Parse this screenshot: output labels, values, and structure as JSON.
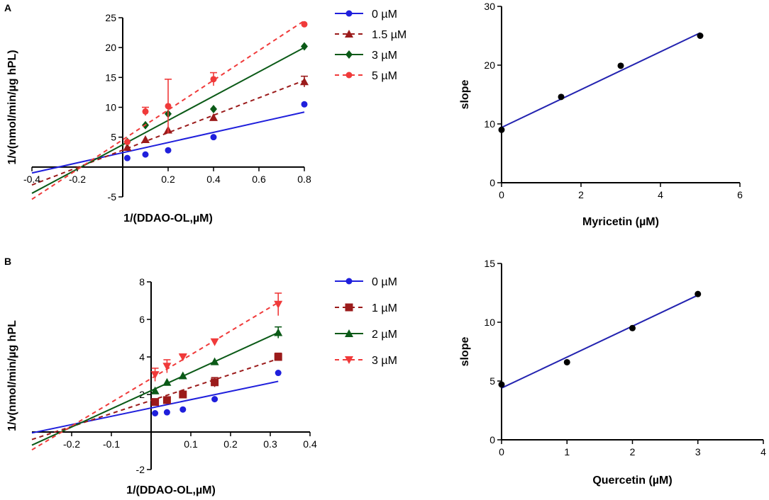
{
  "panels": [
    {
      "label": "A"
    },
    {
      "label": "B"
    }
  ],
  "chart_data": [
    {
      "id": "A-left",
      "type": "scatter",
      "title": "",
      "xlabel": "1/(DDAO-OL,µM)",
      "ylabel": "1/v(nmol/min/µg hPL)",
      "xlim": [
        -0.4,
        0.8
      ],
      "ylim": [
        -5,
        25
      ],
      "xticks": [
        -0.4,
        -0.2,
        0.2,
        0.4,
        0.6,
        0.8
      ],
      "xtick_labels": [
        "-0.4",
        "-0.2",
        "0.2",
        "0.4",
        "0.6",
        "0.8"
      ],
      "yticks": [
        -5,
        5,
        10,
        15,
        20,
        25
      ],
      "ytick_labels": [
        "-5",
        "5",
        "10",
        "15",
        "20",
        "25"
      ],
      "legend_position": "right",
      "series": [
        {
          "name": "0 µM",
          "color": "#1f1fdc",
          "marker": "circle",
          "dash": "solid",
          "x": [
            0.02,
            0.1,
            0.2,
            0.4,
            0.8
          ],
          "y": [
            1.5,
            2.1,
            2.8,
            5.0,
            10.5
          ],
          "err": [
            0,
            0,
            0,
            0,
            0
          ],
          "fit_x": [
            -0.4,
            0.8
          ],
          "fit_y": [
            -1.0,
            9.2
          ]
        },
        {
          "name": "1.5 µM",
          "color": "#9b1b1b",
          "marker": "triangle",
          "dash": "dashed",
          "x": [
            0.02,
            0.1,
            0.2,
            0.4,
            0.8
          ],
          "y": [
            3.3,
            4.6,
            6.2,
            8.3,
            14.3
          ],
          "err": [
            0,
            0,
            0,
            0,
            0.9
          ],
          "fit_x": [
            -0.4,
            0.8
          ],
          "fit_y": [
            -3.0,
            14.5
          ]
        },
        {
          "name": "3 µM",
          "color": "#0b5a17",
          "marker": "diamond",
          "dash": "solid",
          "x": [
            0.02,
            0.1,
            0.2,
            0.4,
            0.8
          ],
          "y": [
            4.2,
            7.0,
            8.9,
            9.7,
            20.2
          ],
          "err": [
            0,
            0,
            0,
            0,
            0
          ],
          "fit_x": [
            -0.4,
            0.8
          ],
          "fit_y": [
            -4.4,
            20.0
          ]
        },
        {
          "name": "5 µM",
          "color": "#f03a3a",
          "marker": "circle",
          "dash": "dashed",
          "x": [
            0.02,
            0.1,
            0.2,
            0.4,
            0.8
          ],
          "y": [
            4.2,
            9.3,
            10.2,
            14.7,
            23.9
          ],
          "err": [
            0,
            0.7,
            4.5,
            1.1,
            0
          ],
          "fit_x": [
            -0.4,
            0.8
          ],
          "fit_y": [
            -5.4,
            24.5
          ]
        }
      ]
    },
    {
      "id": "A-right",
      "type": "scatter",
      "title": "",
      "xlabel": "Myricetin (µM)",
      "ylabel": "slope",
      "xlim": [
        0,
        6
      ],
      "ylim": [
        0,
        30
      ],
      "xticks": [
        0,
        2,
        4,
        6
      ],
      "xtick_labels": [
        "0",
        "2",
        "4",
        "6"
      ],
      "yticks": [
        0,
        10,
        20,
        30
      ],
      "ytick_labels": [
        "0",
        "10",
        "20",
        "30"
      ],
      "series": [
        {
          "name": "slope",
          "color": "#000000",
          "marker": "circle",
          "x": [
            0,
            1.5,
            3,
            5
          ],
          "y": [
            9.0,
            14.6,
            19.9,
            25.0
          ],
          "fit_x": [
            0,
            5
          ],
          "fit_y": [
            9.4,
            25.5
          ],
          "fit_color": "#2323b0"
        }
      ]
    },
    {
      "id": "B-left",
      "type": "scatter",
      "title": "",
      "xlabel": "1/(DDAO-OL,µM)",
      "ylabel": "1/v(nmol/min/µg hPL",
      "xlim": [
        -0.3,
        0.4
      ],
      "ylim": [
        -2,
        8
      ],
      "xticks": [
        -0.2,
        -0.1,
        0.1,
        0.2,
        0.3,
        0.4
      ],
      "xtick_labels": [
        "-0.2",
        "-0.1",
        "0.1",
        "0.2",
        "0.3",
        "0.4"
      ],
      "yticks": [
        -2,
        2,
        4,
        6,
        8
      ],
      "ytick_labels": [
        "-2",
        "2",
        "4",
        "6",
        "8"
      ],
      "legend_position": "right",
      "series": [
        {
          "name": "0 µM",
          "color": "#1f1fdc",
          "marker": "circle",
          "dash": "solid",
          "x": [
            0.01,
            0.04,
            0.08,
            0.16,
            0.32
          ],
          "y": [
            1.0,
            1.05,
            1.2,
            1.75,
            3.15
          ],
          "err": [
            0,
            0,
            0,
            0,
            0
          ],
          "fit_x": [
            -0.3,
            0.32
          ],
          "fit_y": [
            -0.05,
            2.7
          ]
        },
        {
          "name": "1 µM",
          "color": "#9b1b1b",
          "marker": "square",
          "dash": "dashed",
          "x": [
            0.01,
            0.04,
            0.08,
            0.16,
            0.32
          ],
          "y": [
            1.6,
            1.7,
            2.0,
            2.65,
            4.0
          ],
          "err": [
            0,
            0,
            0,
            0.25,
            0.2
          ],
          "fit_x": [
            -0.3,
            0.32
          ],
          "fit_y": [
            -0.4,
            3.9
          ]
        },
        {
          "name": "2 µM",
          "color": "#0b5a17",
          "marker": "triangle",
          "dash": "solid",
          "x": [
            0.01,
            0.04,
            0.08,
            0.16,
            0.32
          ],
          "y": [
            2.2,
            2.65,
            3.0,
            3.75,
            5.3
          ],
          "err": [
            0,
            0,
            0,
            0,
            0.3
          ],
          "fit_x": [
            -0.3,
            0.32
          ],
          "fit_y": [
            -0.7,
            5.3
          ]
        },
        {
          "name": "3 µM",
          "color": "#f03a3a",
          "marker": "triangle-down",
          "dash": "dashed",
          "x": [
            0.01,
            0.04,
            0.08,
            0.16,
            0.32
          ],
          "y": [
            3.05,
            3.5,
            4.0,
            4.8,
            6.8
          ],
          "err": [
            0.35,
            0.35,
            0.1,
            0,
            0.6
          ],
          "fit_x": [
            -0.3,
            0.32
          ],
          "fit_y": [
            -0.95,
            6.9
          ]
        }
      ]
    },
    {
      "id": "B-right",
      "type": "scatter",
      "title": "",
      "xlabel": "Quercetin (µM)",
      "ylabel": "slope",
      "xlim": [
        0,
        4
      ],
      "ylim": [
        0,
        15
      ],
      "xticks": [
        0,
        1,
        2,
        3,
        4
      ],
      "xtick_labels": [
        "0",
        "1",
        "2",
        "3",
        "4"
      ],
      "yticks": [
        0,
        5,
        10,
        15
      ],
      "ytick_labels": [
        "0",
        "5",
        "10",
        "15"
      ],
      "series": [
        {
          "name": "slope",
          "color": "#000000",
          "marker": "circle",
          "x": [
            0,
            1,
            2,
            3
          ],
          "y": [
            4.7,
            6.6,
            9.5,
            12.4
          ],
          "fit_x": [
            0,
            3
          ],
          "fit_y": [
            4.4,
            12.3
          ],
          "fit_color": "#2323b0"
        }
      ]
    }
  ]
}
